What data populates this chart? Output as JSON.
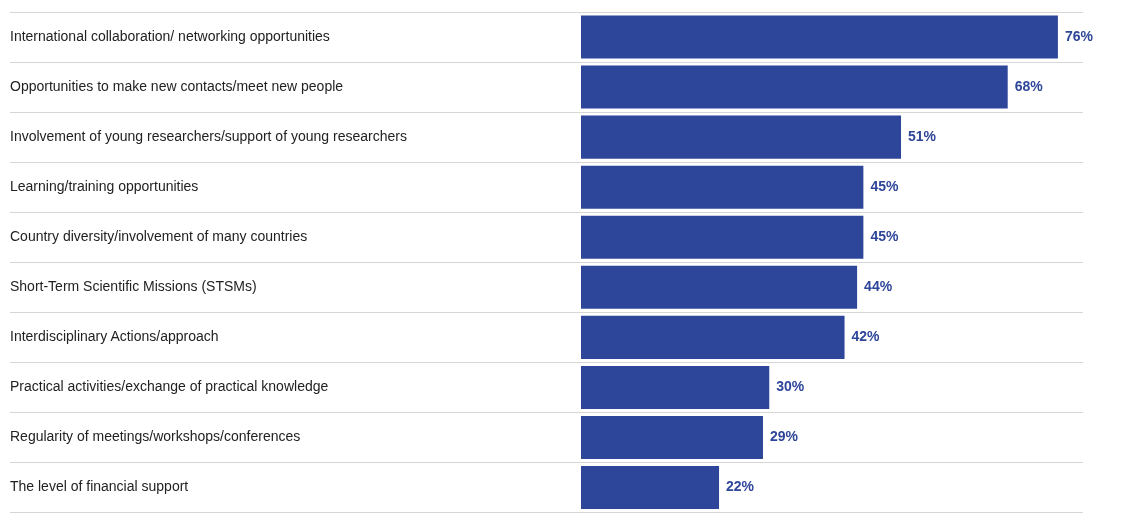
{
  "chart_data": {
    "type": "bar",
    "orientation": "horizontal",
    "grid": "y",
    "legend": false,
    "tick_labels": "y",
    "categories": [
      "International collaboration/ networking opportunities",
      "Opportunities to make new contacts/meet new people",
      "Involvement of young researchers/support of young researchers",
      "Learning/training opportunities",
      "Country diversity/involvement of many countries",
      "Short-Term Scientific Missions (STSMs)",
      "Interdisciplinary Actions/approach",
      "Practical activities/exchange of practical knowledge",
      "Regularity of meetings/workshops/conferences",
      "The level of financial support"
    ],
    "values": [
      76,
      68,
      51,
      45,
      45,
      44,
      42,
      30,
      29,
      22
    ],
    "value_labels": [
      "76%",
      "68%",
      "51%",
      "45%",
      "45%",
      "44%",
      "42%",
      "30%",
      "29%",
      "22%"
    ],
    "color": "#2e4699"
  }
}
